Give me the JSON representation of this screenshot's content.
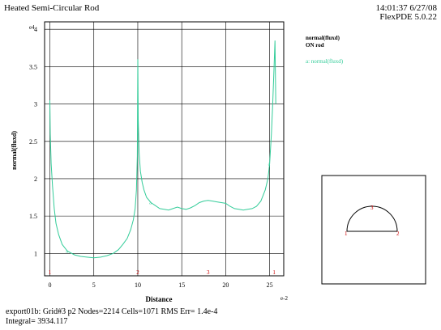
{
  "header": {
    "title": "Heated Semi-Circular Rod",
    "timestamp": "14:01:37 6/27/08",
    "version": "FlexPDE 5.0.22"
  },
  "legend": {
    "line1": "normal(fluxd)",
    "line2": "ON rod",
    "entry": "a: normal(fluxd)"
  },
  "footer": {
    "line1": "export01b:  Grid#3  p2  Nodes=2214 Cells=1071 RMS Err= 1.4e-4",
    "line2": "Integral=  3934.117"
  },
  "colors": {
    "curve": "#33cc99",
    "marker": "#cc0000",
    "grid": "#000000"
  },
  "chart_data": {
    "type": "line",
    "title": "Heated Semi-Circular Rod",
    "xlabel": "Distance",
    "ylabel": "normal(fluxd)",
    "x_scale_label": "e-2",
    "y_scale_label": "e4",
    "xlim": [
      -0.6,
      26.6
    ],
    "ylim": [
      0.7,
      4.1
    ],
    "x_ticks": [
      0,
      5,
      10,
      15,
      20,
      25
    ],
    "y_ticks": [
      1,
      1.5,
      2,
      2.5,
      3,
      3.5,
      4
    ],
    "x_tick_labels": [
      "0",
      "5",
      "10",
      "15",
      "20",
      "25"
    ],
    "y_tick_labels": [
      "1",
      "1.5",
      "2",
      "2.5",
      "3",
      "3.5",
      "4"
    ],
    "grid": true,
    "series": [
      {
        "name": "a: normal(fluxd)",
        "x": [
          0,
          0.05,
          0.15,
          0.3,
          0.5,
          0.7,
          1.0,
          1.4,
          2.0,
          2.8,
          3.5,
          4.2,
          5.0,
          5.8,
          6.5,
          7.2,
          7.8,
          8.3,
          8.8,
          9.2,
          9.5,
          9.7,
          9.85,
          9.95,
          10.0,
          10.05,
          10.15,
          10.3,
          10.5,
          10.7,
          11.0,
          11.5,
          12.0,
          12.5,
          13.0,
          13.5,
          14.0,
          14.5,
          15.0,
          15.5,
          16.0,
          16.5,
          17.0,
          17.5,
          18.0,
          18.5,
          19.0,
          19.5,
          20.0,
          20.5,
          21.0,
          21.5,
          22.0,
          22.5,
          23.0,
          23.5,
          24.0,
          24.5,
          24.8,
          25.0,
          25.2,
          25.35,
          25.5,
          25.6,
          25.7
        ],
        "y": [
          3.05,
          2.6,
          2.2,
          1.9,
          1.6,
          1.4,
          1.25,
          1.12,
          1.03,
          0.98,
          0.96,
          0.95,
          0.94,
          0.95,
          0.97,
          1.0,
          1.05,
          1.12,
          1.2,
          1.32,
          1.45,
          1.6,
          1.85,
          2.3,
          3.6,
          2.8,
          2.35,
          2.1,
          1.95,
          1.85,
          1.75,
          1.68,
          1.64,
          1.6,
          1.59,
          1.58,
          1.6,
          1.62,
          1.6,
          1.59,
          1.61,
          1.64,
          1.68,
          1.7,
          1.71,
          1.7,
          1.69,
          1.68,
          1.67,
          1.63,
          1.6,
          1.59,
          1.58,
          1.59,
          1.6,
          1.63,
          1.7,
          1.85,
          2.0,
          2.2,
          2.6,
          3.0,
          3.5,
          3.85,
          3.0
        ]
      }
    ],
    "x_markers": [
      {
        "x": 0,
        "label": "1"
      },
      {
        "x": 10,
        "label": "2"
      },
      {
        "x": 18,
        "label": "3"
      },
      {
        "x": 25.5,
        "label": "1"
      }
    ],
    "inset": {
      "point_labels": [
        "1",
        "2",
        "3"
      ]
    }
  }
}
